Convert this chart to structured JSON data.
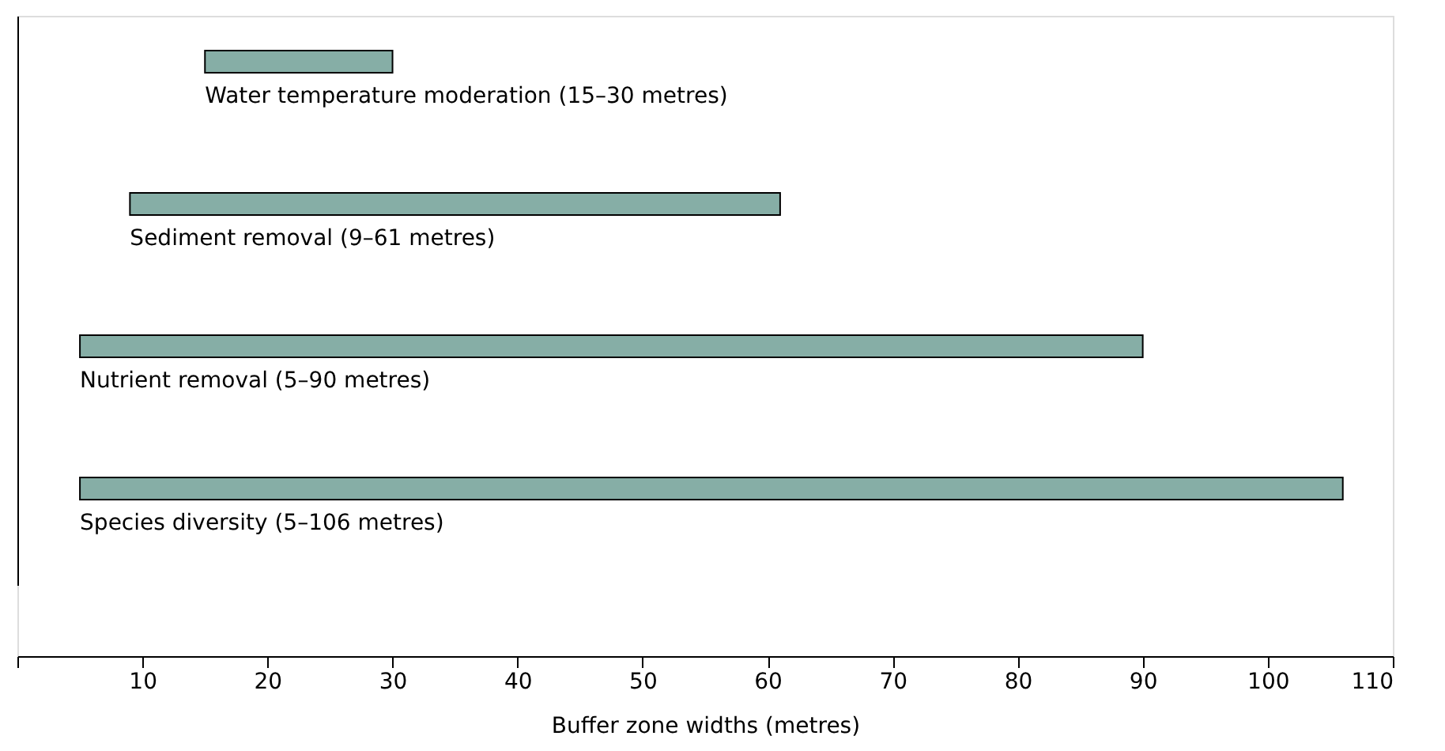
{
  "chart_data": {
    "type": "bar",
    "orientation": "horizontal",
    "xlabel": "Buffer zone widths (metres)",
    "categories": [
      "Water temperature moderation (15–30 metres)",
      "Sediment removal (9–61 metres)",
      "Nutrient removal (5–90 metres)",
      "Species diversity (5–106 metres)"
    ],
    "base": [
      15,
      9,
      5,
      5
    ],
    "values": [
      15,
      52,
      85,
      101
    ],
    "color": "#86aea6",
    "xlim": [
      0,
      110
    ],
    "xticks": [
      {
        "value": 0,
        "label": null
      },
      10,
      20,
      30,
      40,
      50,
      60,
      70,
      80,
      90,
      100,
      110
    ],
    "tick_labels": "x",
    "grid": false
  }
}
